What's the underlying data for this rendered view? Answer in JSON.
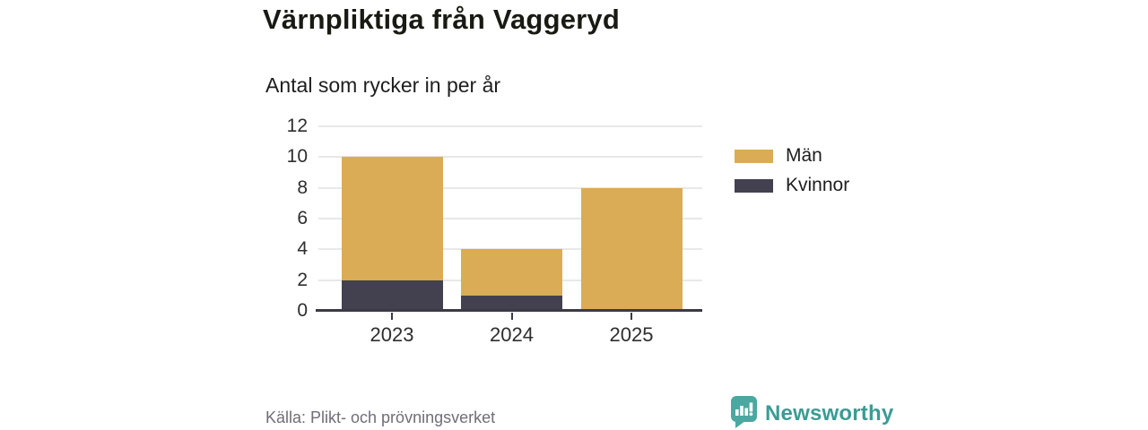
{
  "header": {
    "title": "Värnpliktiga från Vaggeryd",
    "subtitle": "Antal som rycker in per år"
  },
  "chart_data": {
    "type": "bar",
    "stacked": true,
    "title": "Värnpliktiga från Vaggeryd",
    "subtitle": "Antal som rycker in per år",
    "categories": [
      "2023",
      "2024",
      "2025"
    ],
    "series": [
      {
        "name": "Män",
        "color": "#d9ac55",
        "values": [
          8,
          3,
          8
        ]
      },
      {
        "name": "Kvinnor",
        "color": "#43414f",
        "values": [
          2,
          1,
          0
        ]
      }
    ],
    "stack_order_bottom_to_top": [
      "Kvinnor",
      "Män"
    ],
    "totals": [
      10,
      4,
      8
    ],
    "xlabel": "",
    "ylabel": "",
    "ylim": [
      0,
      12
    ],
    "ytick_step": 2,
    "yticks": [
      0,
      2,
      4,
      6,
      8,
      10,
      12
    ],
    "grid": true,
    "legend_position": "right"
  },
  "footer": {
    "source": "Källa: Plikt- och prövningsverket",
    "brand": "Newsworthy"
  },
  "colors": {
    "grid": "#e8e8e8",
    "axis": "#3b3a45",
    "text_dark": "#1e1e1e",
    "text_gray": "#6f6e79",
    "brand_teal": "#3a9c94",
    "logo_teal": "#4aa8a1"
  }
}
